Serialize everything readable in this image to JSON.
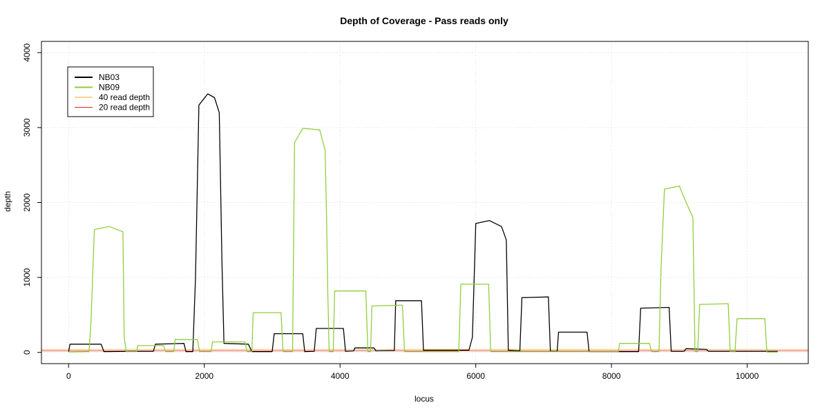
{
  "chart_data": {
    "type": "line",
    "title": "Depth of Coverage - Pass reads only",
    "xlabel": "locus",
    "ylabel": "depth",
    "xlim": [
      -400,
      10900
    ],
    "ylim": [
      -150,
      4150
    ],
    "x_ticks": [
      0,
      2000,
      4000,
      6000,
      8000,
      10000
    ],
    "y_ticks": [
      0,
      1000,
      2000,
      3000,
      4000
    ],
    "grid": true,
    "legend_position": "top-left",
    "series": [
      {
        "name": "NB03",
        "color": "#000000",
        "points": [
          [
            0,
            10
          ],
          [
            20,
            110
          ],
          [
            480,
            110
          ],
          [
            520,
            10
          ],
          [
            950,
            15
          ],
          [
            1250,
            15
          ],
          [
            1280,
            110
          ],
          [
            1700,
            120
          ],
          [
            1730,
            10
          ],
          [
            1830,
            10
          ],
          [
            1870,
            1000
          ],
          [
            1920,
            3300
          ],
          [
            2050,
            3450
          ],
          [
            2150,
            3400
          ],
          [
            2220,
            3200
          ],
          [
            2260,
            1200
          ],
          [
            2290,
            120
          ],
          [
            2650,
            110
          ],
          [
            2700,
            10
          ],
          [
            3000,
            10
          ],
          [
            3030,
            250
          ],
          [
            3450,
            250
          ],
          [
            3480,
            10
          ],
          [
            3620,
            15
          ],
          [
            3650,
            320
          ],
          [
            4050,
            320
          ],
          [
            4080,
            15
          ],
          [
            4200,
            20
          ],
          [
            4220,
            60
          ],
          [
            4500,
            60
          ],
          [
            4530,
            20
          ],
          [
            4800,
            25
          ],
          [
            4820,
            690
          ],
          [
            5200,
            690
          ],
          [
            5230,
            30
          ],
          [
            5900,
            30
          ],
          [
            5950,
            200
          ],
          [
            6000,
            1720
          ],
          [
            6200,
            1760
          ],
          [
            6380,
            1680
          ],
          [
            6450,
            1500
          ],
          [
            6480,
            30
          ],
          [
            6650,
            20
          ],
          [
            6680,
            730
          ],
          [
            7070,
            740
          ],
          [
            7100,
            15
          ],
          [
            7200,
            15
          ],
          [
            7220,
            270
          ],
          [
            7640,
            270
          ],
          [
            7670,
            10
          ],
          [
            8400,
            10
          ],
          [
            8430,
            590
          ],
          [
            8850,
            600
          ],
          [
            8880,
            15
          ],
          [
            9070,
            15
          ],
          [
            9100,
            50
          ],
          [
            9400,
            40
          ],
          [
            9430,
            15
          ],
          [
            10450,
            15
          ]
        ]
      },
      {
        "name": "NB09",
        "color": "#8fce3c",
        "points": [
          [
            0,
            5
          ],
          [
            300,
            10
          ],
          [
            330,
            400
          ],
          [
            380,
            1640
          ],
          [
            600,
            1680
          ],
          [
            800,
            1610
          ],
          [
            820,
            200
          ],
          [
            850,
            10
          ],
          [
            1000,
            10
          ],
          [
            1020,
            90
          ],
          [
            1400,
            90
          ],
          [
            1430,
            10
          ],
          [
            1550,
            10
          ],
          [
            1570,
            170
          ],
          [
            1900,
            170
          ],
          [
            1930,
            10
          ],
          [
            2100,
            10
          ],
          [
            2120,
            140
          ],
          [
            2600,
            140
          ],
          [
            2630,
            10
          ],
          [
            2700,
            10
          ],
          [
            2720,
            530
          ],
          [
            3130,
            530
          ],
          [
            3160,
            10
          ],
          [
            3300,
            10
          ],
          [
            3330,
            2800
          ],
          [
            3450,
            2990
          ],
          [
            3700,
            2970
          ],
          [
            3780,
            2700
          ],
          [
            3800,
            1850
          ],
          [
            3820,
            800
          ],
          [
            3840,
            10
          ],
          [
            3900,
            10
          ],
          [
            3920,
            820
          ],
          [
            4380,
            820
          ],
          [
            4410,
            10
          ],
          [
            4450,
            10
          ],
          [
            4470,
            620
          ],
          [
            4920,
            630
          ],
          [
            4950,
            10
          ],
          [
            5750,
            10
          ],
          [
            5780,
            910
          ],
          [
            6190,
            910
          ],
          [
            6220,
            10
          ],
          [
            8100,
            10
          ],
          [
            8120,
            120
          ],
          [
            8560,
            120
          ],
          [
            8590,
            10
          ],
          [
            8700,
            10
          ],
          [
            8730,
            1100
          ],
          [
            8780,
            2180
          ],
          [
            9000,
            2220
          ],
          [
            9100,
            2000
          ],
          [
            9200,
            1800
          ],
          [
            9230,
            10
          ],
          [
            9270,
            10
          ],
          [
            9300,
            640
          ],
          [
            9720,
            650
          ],
          [
            9750,
            10
          ],
          [
            9820,
            10
          ],
          [
            9850,
            450
          ],
          [
            10260,
            450
          ],
          [
            10290,
            5
          ],
          [
            10450,
            5
          ]
        ]
      }
    ],
    "reference_lines": [
      {
        "name": "40 read depth",
        "value": 40,
        "color": "#f5a623"
      },
      {
        "name": "20 read depth",
        "value": 20,
        "color": "#e02020"
      }
    ],
    "legend": [
      {
        "label": "NB03",
        "color": "#000000",
        "width": 2
      },
      {
        "label": "NB09",
        "color": "#8fce3c",
        "width": 2
      },
      {
        "label": "40 read depth",
        "color": "#f5a623",
        "width": 1
      },
      {
        "label": "20 read depth",
        "color": "#e02020",
        "width": 1
      }
    ]
  }
}
